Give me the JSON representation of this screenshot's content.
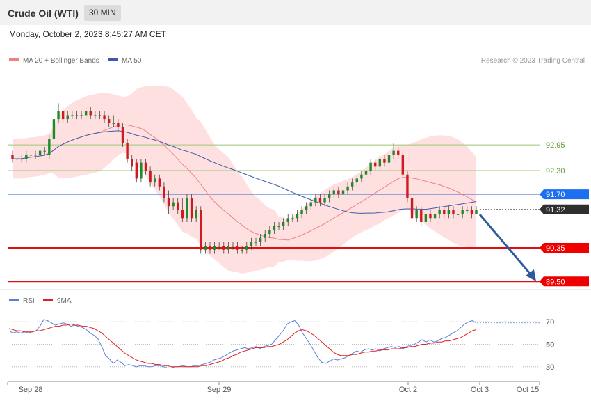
{
  "header": {
    "title": "Crude Oil (WTI)",
    "timeframe": "30 MIN"
  },
  "date": "Monday, October 2, 2023 8:45:27 AM CET",
  "legend": {
    "ma20": "MA 20 + Bollinger Bands",
    "ma50": "MA 50",
    "credit": "Research © 2023 Trading Central"
  },
  "colors": {
    "up": "#1f8a2a",
    "down": "#d01a22",
    "ma20": "#f08080",
    "ma50": "#3d5aa8",
    "band": "#ffd6d6",
    "rsi": "#5b7fd6",
    "rsi_ma": "#e02020",
    "green_level": "#9bc870",
    "blue_level": "#4d7fd8",
    "red_level": "#e01010",
    "arrow": "#2e5a9c"
  },
  "chart_data": [
    {
      "type": "candlestick",
      "x_ticks": [
        "Sep 28",
        "Sep 29",
        "Oct 2",
        "Oct 3",
        "Oct 15"
      ],
      "ylim": [
        89.4,
        94.85
      ],
      "levels": [
        {
          "value": 92.95,
          "label": "92.95",
          "kind": "resistance"
        },
        {
          "value": 92.3,
          "label": "92.30",
          "kind": "resistance"
        },
        {
          "value": 91.7,
          "label": "91.70",
          "kind": "pivot"
        },
        {
          "value": 91.32,
          "label": "91.32",
          "kind": "last"
        },
        {
          "value": 90.35,
          "label": "90.35",
          "kind": "support"
        },
        {
          "value": 89.5,
          "label": "89.50",
          "kind": "support"
        }
      ],
      "candles": [
        [
          92.7,
          92.6,
          92.8,
          92.5
        ],
        [
          92.6,
          92.6,
          92.7,
          92.5
        ],
        [
          92.6,
          92.6,
          92.7,
          92.5
        ],
        [
          92.6,
          92.7,
          92.8,
          92.5
        ],
        [
          92.7,
          92.7,
          92.8,
          92.6
        ],
        [
          92.7,
          92.7,
          92.8,
          92.6
        ],
        [
          92.7,
          92.8,
          92.9,
          92.6
        ],
        [
          92.8,
          92.8,
          92.9,
          92.7
        ],
        [
          92.7,
          93.1,
          93.2,
          92.6
        ],
        [
          93.1,
          93.6,
          93.7,
          93.0
        ],
        [
          93.6,
          93.8,
          94.0,
          93.5
        ],
        [
          93.8,
          93.6,
          93.9,
          93.5
        ],
        [
          93.6,
          93.7,
          93.8,
          93.5
        ],
        [
          93.7,
          93.7,
          93.8,
          93.6
        ],
        [
          93.7,
          93.7,
          93.8,
          93.6
        ],
        [
          93.7,
          93.7,
          93.8,
          93.6
        ],
        [
          93.7,
          93.8,
          93.9,
          93.6
        ],
        [
          93.8,
          93.7,
          93.9,
          93.6
        ],
        [
          93.7,
          93.7,
          93.8,
          93.6
        ],
        [
          93.7,
          93.7,
          93.8,
          93.6
        ],
        [
          93.7,
          93.6,
          93.8,
          93.5
        ],
        [
          93.6,
          93.5,
          93.7,
          93.4
        ],
        [
          93.5,
          93.5,
          93.7,
          93.4
        ],
        [
          93.5,
          93.4,
          93.6,
          93.3
        ],
        [
          93.4,
          93.0,
          93.5,
          92.9
        ],
        [
          93.0,
          92.6,
          93.1,
          92.5
        ],
        [
          92.6,
          92.4,
          92.7,
          92.3
        ],
        [
          92.5,
          92.1,
          92.6,
          92.0
        ],
        [
          92.1,
          92.5,
          92.6,
          92.0
        ],
        [
          92.5,
          92.3,
          92.6,
          92.2
        ],
        [
          92.3,
          92.0,
          92.4,
          91.9
        ],
        [
          92.0,
          92.1,
          92.2,
          91.9
        ],
        [
          92.1,
          91.9,
          92.2,
          91.8
        ],
        [
          91.9,
          91.6,
          92.0,
          91.5
        ],
        [
          91.6,
          91.4,
          91.8,
          91.2
        ],
        [
          91.4,
          91.5,
          91.6,
          91.3
        ],
        [
          91.5,
          91.3,
          91.6,
          91.2
        ],
        [
          91.3,
          91.1,
          91.6,
          91.0
        ],
        [
          91.1,
          91.6,
          91.7,
          91.0
        ],
        [
          91.6,
          91.1,
          91.7,
          91.0
        ],
        [
          91.1,
          91.3,
          91.4,
          91.0
        ],
        [
          91.3,
          90.3,
          91.4,
          90.2
        ],
        [
          90.3,
          90.4,
          90.5,
          90.2
        ],
        [
          90.4,
          90.3,
          90.5,
          90.2
        ],
        [
          90.3,
          90.4,
          90.5,
          90.2
        ],
        [
          90.4,
          90.4,
          90.5,
          90.3
        ],
        [
          90.4,
          90.3,
          90.5,
          90.2
        ],
        [
          90.3,
          90.4,
          90.5,
          90.2
        ],
        [
          90.4,
          90.4,
          90.5,
          90.3
        ],
        [
          90.4,
          90.3,
          90.5,
          90.2
        ],
        [
          90.3,
          90.3,
          90.4,
          90.2
        ],
        [
          90.3,
          90.4,
          90.5,
          90.2
        ],
        [
          90.4,
          90.5,
          90.6,
          90.3
        ],
        [
          90.5,
          90.5,
          90.6,
          90.4
        ],
        [
          90.5,
          90.6,
          90.7,
          90.4
        ],
        [
          90.6,
          90.7,
          90.8,
          90.5
        ],
        [
          90.7,
          90.8,
          90.9,
          90.6
        ],
        [
          90.8,
          90.9,
          91.0,
          90.7
        ],
        [
          90.9,
          90.9,
          91.0,
          90.8
        ],
        [
          90.9,
          91.0,
          91.1,
          90.8
        ],
        [
          91.0,
          91.1,
          91.2,
          90.9
        ],
        [
          91.1,
          91.1,
          91.2,
          91.0
        ],
        [
          91.1,
          91.2,
          91.3,
          91.0
        ],
        [
          91.2,
          91.3,
          91.4,
          91.1
        ],
        [
          91.3,
          91.4,
          91.5,
          91.2
        ],
        [
          91.4,
          91.5,
          91.6,
          91.3
        ],
        [
          91.5,
          91.6,
          91.7,
          91.4
        ],
        [
          91.6,
          91.5,
          91.7,
          91.4
        ],
        [
          91.5,
          91.6,
          91.7,
          91.4
        ],
        [
          91.6,
          91.7,
          91.8,
          91.5
        ],
        [
          91.7,
          91.8,
          91.9,
          91.6
        ],
        [
          91.8,
          91.7,
          91.9,
          91.6
        ],
        [
          91.7,
          91.8,
          91.9,
          91.6
        ],
        [
          91.8,
          91.9,
          92.0,
          91.7
        ],
        [
          91.9,
          92.0,
          92.1,
          91.8
        ],
        [
          92.0,
          92.1,
          92.2,
          91.9
        ],
        [
          92.1,
          92.2,
          92.3,
          92.0
        ],
        [
          92.2,
          92.3,
          92.4,
          92.1
        ],
        [
          92.3,
          92.5,
          92.6,
          92.2
        ],
        [
          92.5,
          92.4,
          92.6,
          92.3
        ],
        [
          92.4,
          92.6,
          92.7,
          92.3
        ],
        [
          92.6,
          92.5,
          92.7,
          92.4
        ],
        [
          92.5,
          92.7,
          92.8,
          92.4
        ],
        [
          92.7,
          92.8,
          93.0,
          92.6
        ],
        [
          92.8,
          92.7,
          92.9,
          92.6
        ],
        [
          92.7,
          92.2,
          92.8,
          92.1
        ],
        [
          92.2,
          91.6,
          92.3,
          91.5
        ],
        [
          91.6,
          91.1,
          91.7,
          91.0
        ],
        [
          91.1,
          91.3,
          91.4,
          91.0
        ],
        [
          91.3,
          91.0,
          91.4,
          90.9
        ],
        [
          91.0,
          91.2,
          91.3,
          90.9
        ],
        [
          91.2,
          91.1,
          91.3,
          91.0
        ],
        [
          91.1,
          91.2,
          91.3,
          91.0
        ],
        [
          91.2,
          91.3,
          91.4,
          91.1
        ],
        [
          91.3,
          91.2,
          91.4,
          91.1
        ],
        [
          91.2,
          91.3,
          91.4,
          91.1
        ],
        [
          91.3,
          91.2,
          91.4,
          91.1
        ],
        [
          91.2,
          91.2,
          91.3,
          91.1
        ],
        [
          91.2,
          91.3,
          91.4,
          91.1
        ],
        [
          91.3,
          91.3,
          91.4,
          91.2
        ],
        [
          91.3,
          91.2,
          91.4,
          91.1
        ],
        [
          91.2,
          91.3,
          91.4,
          91.2
        ]
      ]
    },
    {
      "type": "line",
      "title": "",
      "series": [
        {
          "name": "RSI",
          "values": [
            62,
            60,
            61,
            60,
            61,
            60,
            61,
            62,
            66,
            72,
            71,
            69,
            67,
            68,
            69,
            68,
            66,
            67,
            66,
            65,
            63,
            60,
            58,
            55,
            48,
            40,
            37,
            33,
            36,
            34,
            31,
            32,
            31,
            30,
            31,
            31,
            30,
            30,
            31,
            31,
            30,
            29,
            29,
            30,
            30,
            31,
            30,
            30,
            31,
            31,
            32,
            33,
            34,
            36,
            37,
            38,
            40,
            42,
            44,
            45,
            46,
            47,
            46,
            47,
            48,
            46,
            48,
            49,
            50,
            54,
            58,
            62,
            68,
            70,
            71,
            67,
            60,
            55,
            50,
            44,
            38,
            34,
            33,
            35,
            37,
            36,
            37,
            38,
            40,
            42,
            44,
            43,
            45,
            46,
            45,
            46,
            44,
            46,
            47,
            48,
            47,
            48,
            46,
            48,
            49,
            50,
            52,
            54,
            52,
            54,
            52,
            53,
            55,
            56,
            58,
            60,
            62,
            65,
            68,
            70,
            71,
            69
          ]
        },
        {
          "name": "9MA",
          "values": [
            64,
            63,
            62,
            62,
            61,
            61,
            61,
            62,
            62,
            63,
            64,
            65,
            66,
            66,
            67,
            67,
            68,
            67,
            67,
            66,
            66,
            65,
            64,
            62,
            60,
            57,
            54,
            51,
            48,
            45,
            42,
            40,
            38,
            36,
            35,
            34,
            33,
            33,
            32,
            32,
            31,
            31,
            30,
            30,
            30,
            30,
            30,
            30,
            30,
            30,
            31,
            31,
            32,
            33,
            34,
            35,
            37,
            38,
            40,
            41,
            43,
            44,
            45,
            46,
            47,
            47,
            47,
            48,
            48,
            49,
            50,
            52,
            54,
            57,
            60,
            62,
            63,
            62,
            60,
            58,
            55,
            52,
            49,
            46,
            43,
            41,
            40,
            40,
            40,
            41,
            41,
            42,
            43,
            43,
            44,
            44,
            45,
            45,
            45,
            46,
            46,
            46,
            47,
            47,
            48,
            48,
            49,
            50,
            50,
            51,
            51,
            52,
            52,
            53,
            53,
            54,
            55,
            56,
            58,
            60,
            62,
            63
          ]
        }
      ],
      "y_ticks": [
        "70",
        "50",
        "30"
      ],
      "ylim": [
        20,
        80
      ]
    }
  ]
}
